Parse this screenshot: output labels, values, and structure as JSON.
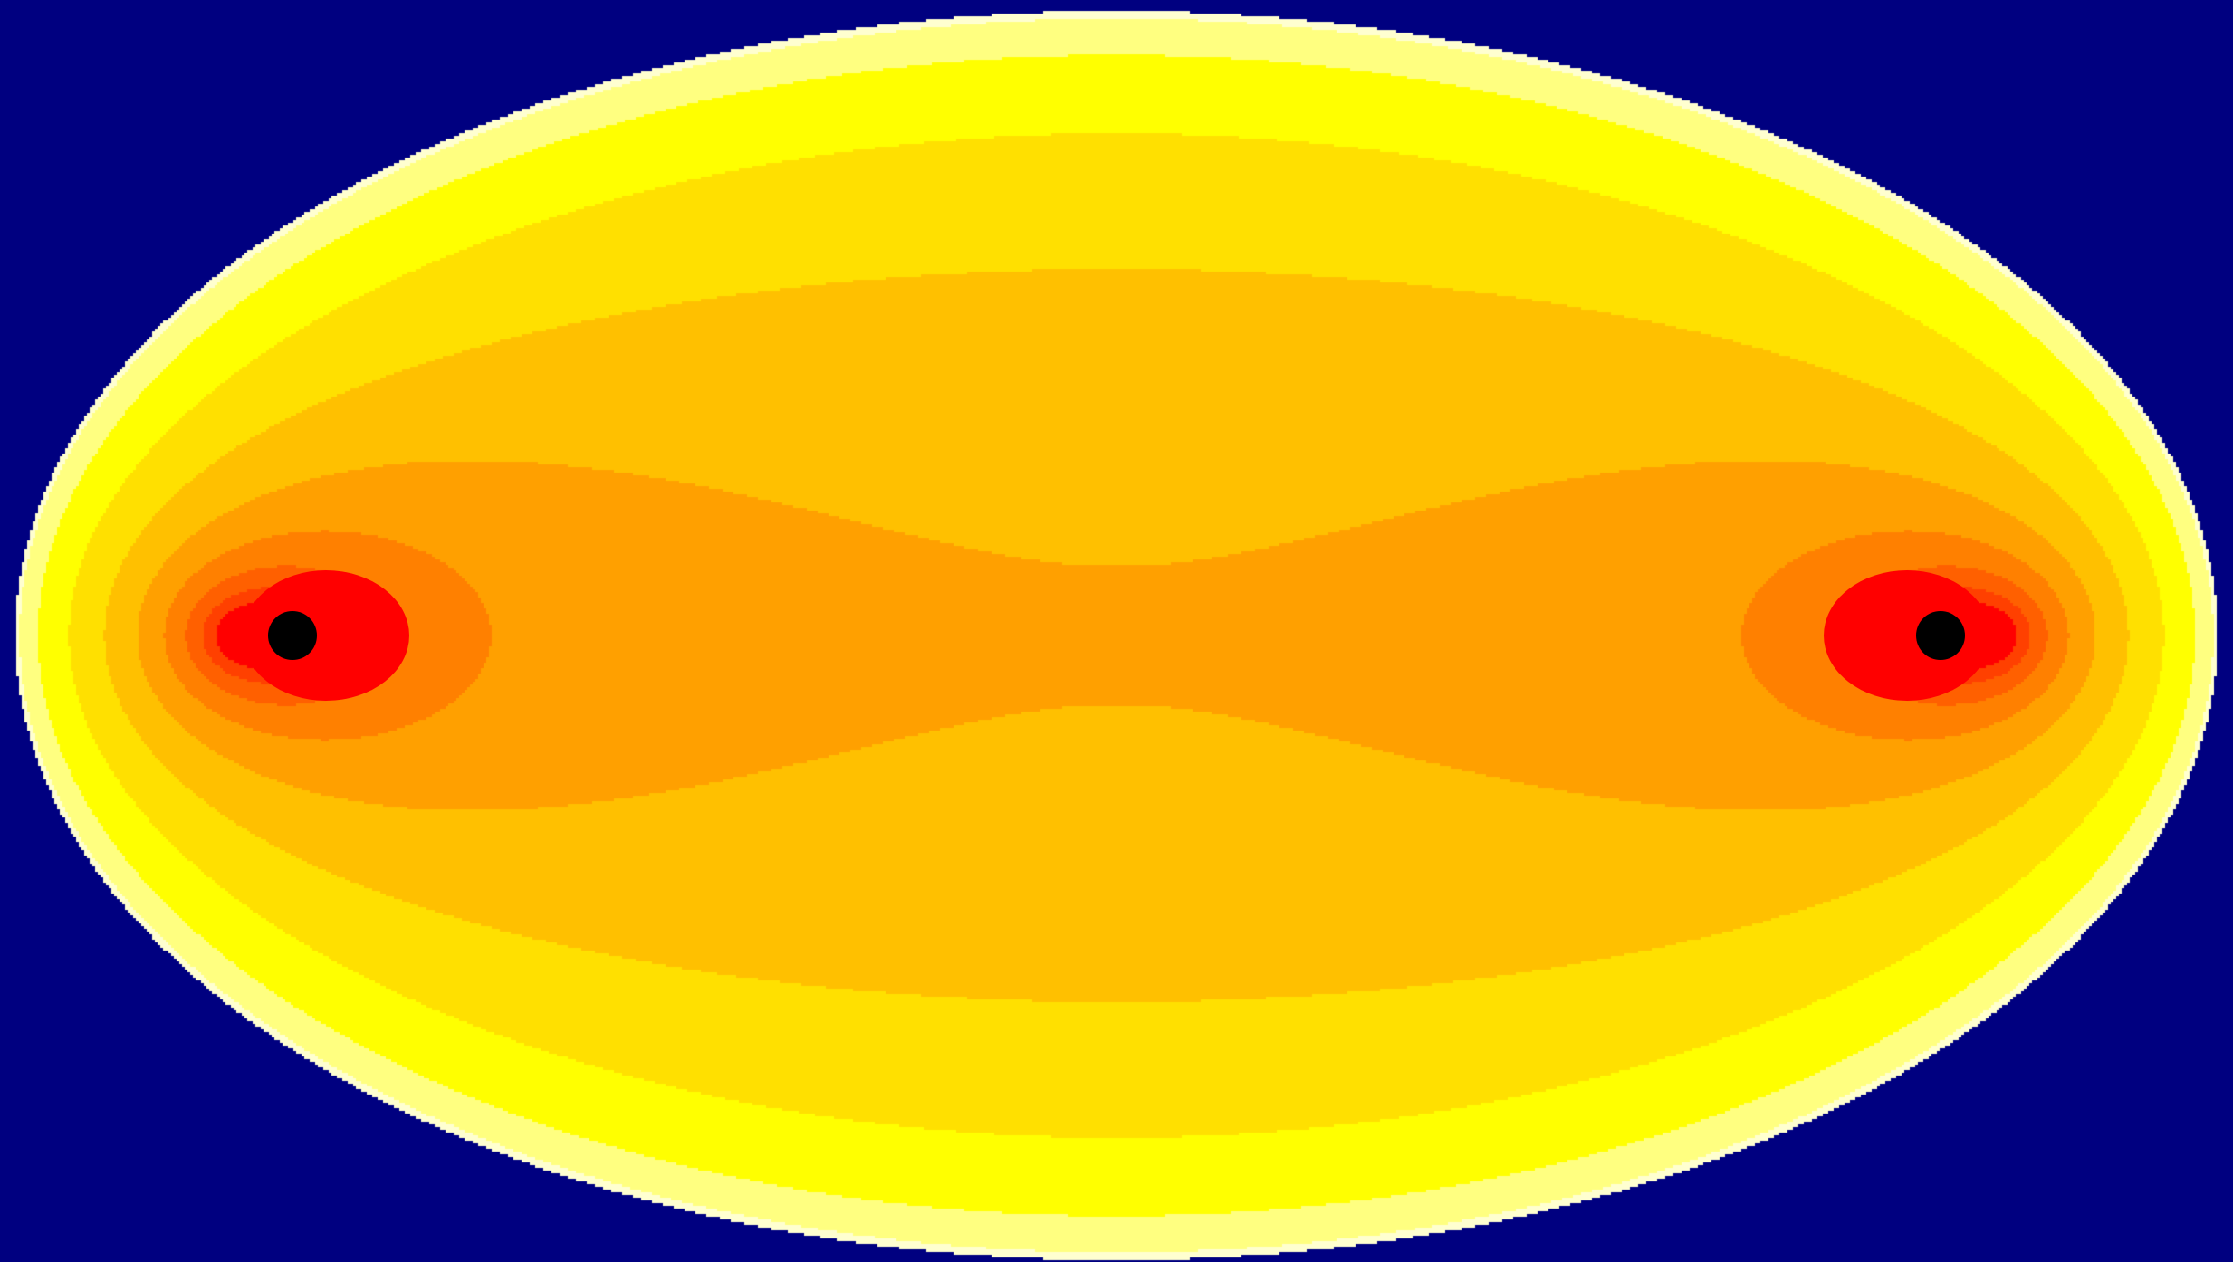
{
  "diagram": {
    "background_color": "#000080",
    "boundary_shape": "ellipse",
    "colormap": [
      "#FFFFD0",
      "#FFFF80",
      "#FFFF00",
      "#FFE000",
      "#FFC000",
      "#FFA000",
      "#FF8000",
      "#FF6000",
      "#FF4000",
      "#FF0000"
    ],
    "source_count": 2,
    "source_marker_color": "#000000",
    "source_core_color": "#FF0000"
  }
}
